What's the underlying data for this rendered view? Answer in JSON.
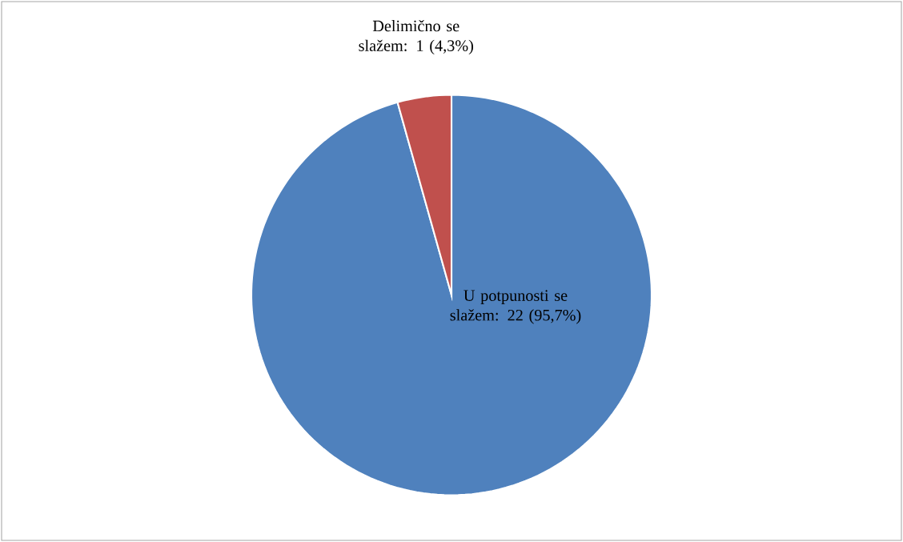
{
  "chart_data": {
    "type": "pie",
    "categories": [
      "U potpunosti se slažem: 22 (95,7%)",
      "Delimično se slažem: 1 (4,3%)"
    ],
    "values": [
      22,
      1
    ],
    "colors": [
      "#4f81bd",
      "#c0504d"
    ]
  }
}
